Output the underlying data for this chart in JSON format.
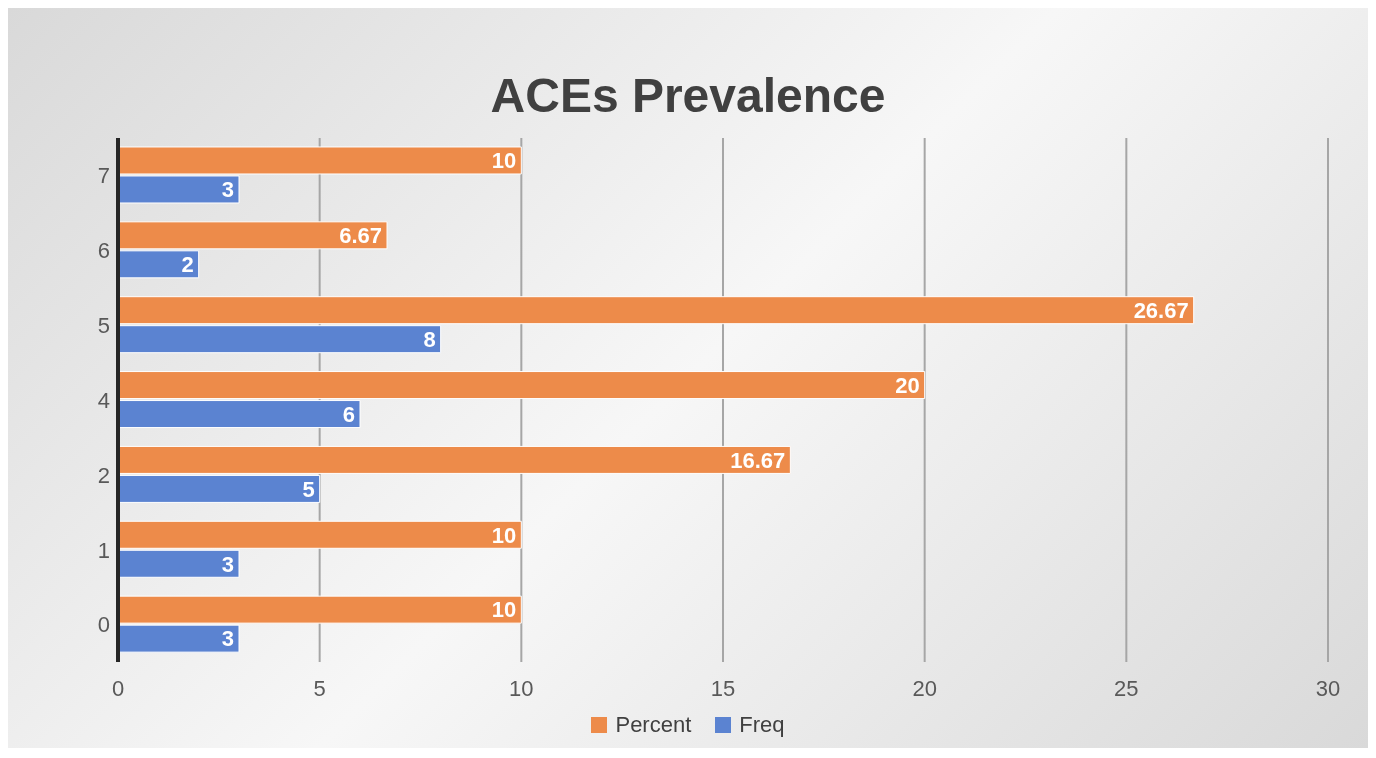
{
  "chart_data": {
    "type": "bar",
    "orientation": "horizontal",
    "title": "ACEs Prevalence",
    "categories": [
      "7",
      "6",
      "5",
      "4",
      "2",
      "1",
      "0"
    ],
    "series": [
      {
        "name": "Percent",
        "color": "#ed8b4a",
        "values": [
          10,
          6.67,
          26.67,
          20,
          16.67,
          10,
          10
        ]
      },
      {
        "name": "Freq",
        "color": "#5b83d1",
        "values": [
          3,
          2,
          8,
          6,
          5,
          3,
          3
        ]
      }
    ],
    "xlim": [
      0,
      30
    ],
    "xticks": [
      0,
      5,
      10,
      15,
      20,
      25,
      30
    ],
    "grid": "x",
    "legend": "bottom",
    "data_labels": true
  }
}
